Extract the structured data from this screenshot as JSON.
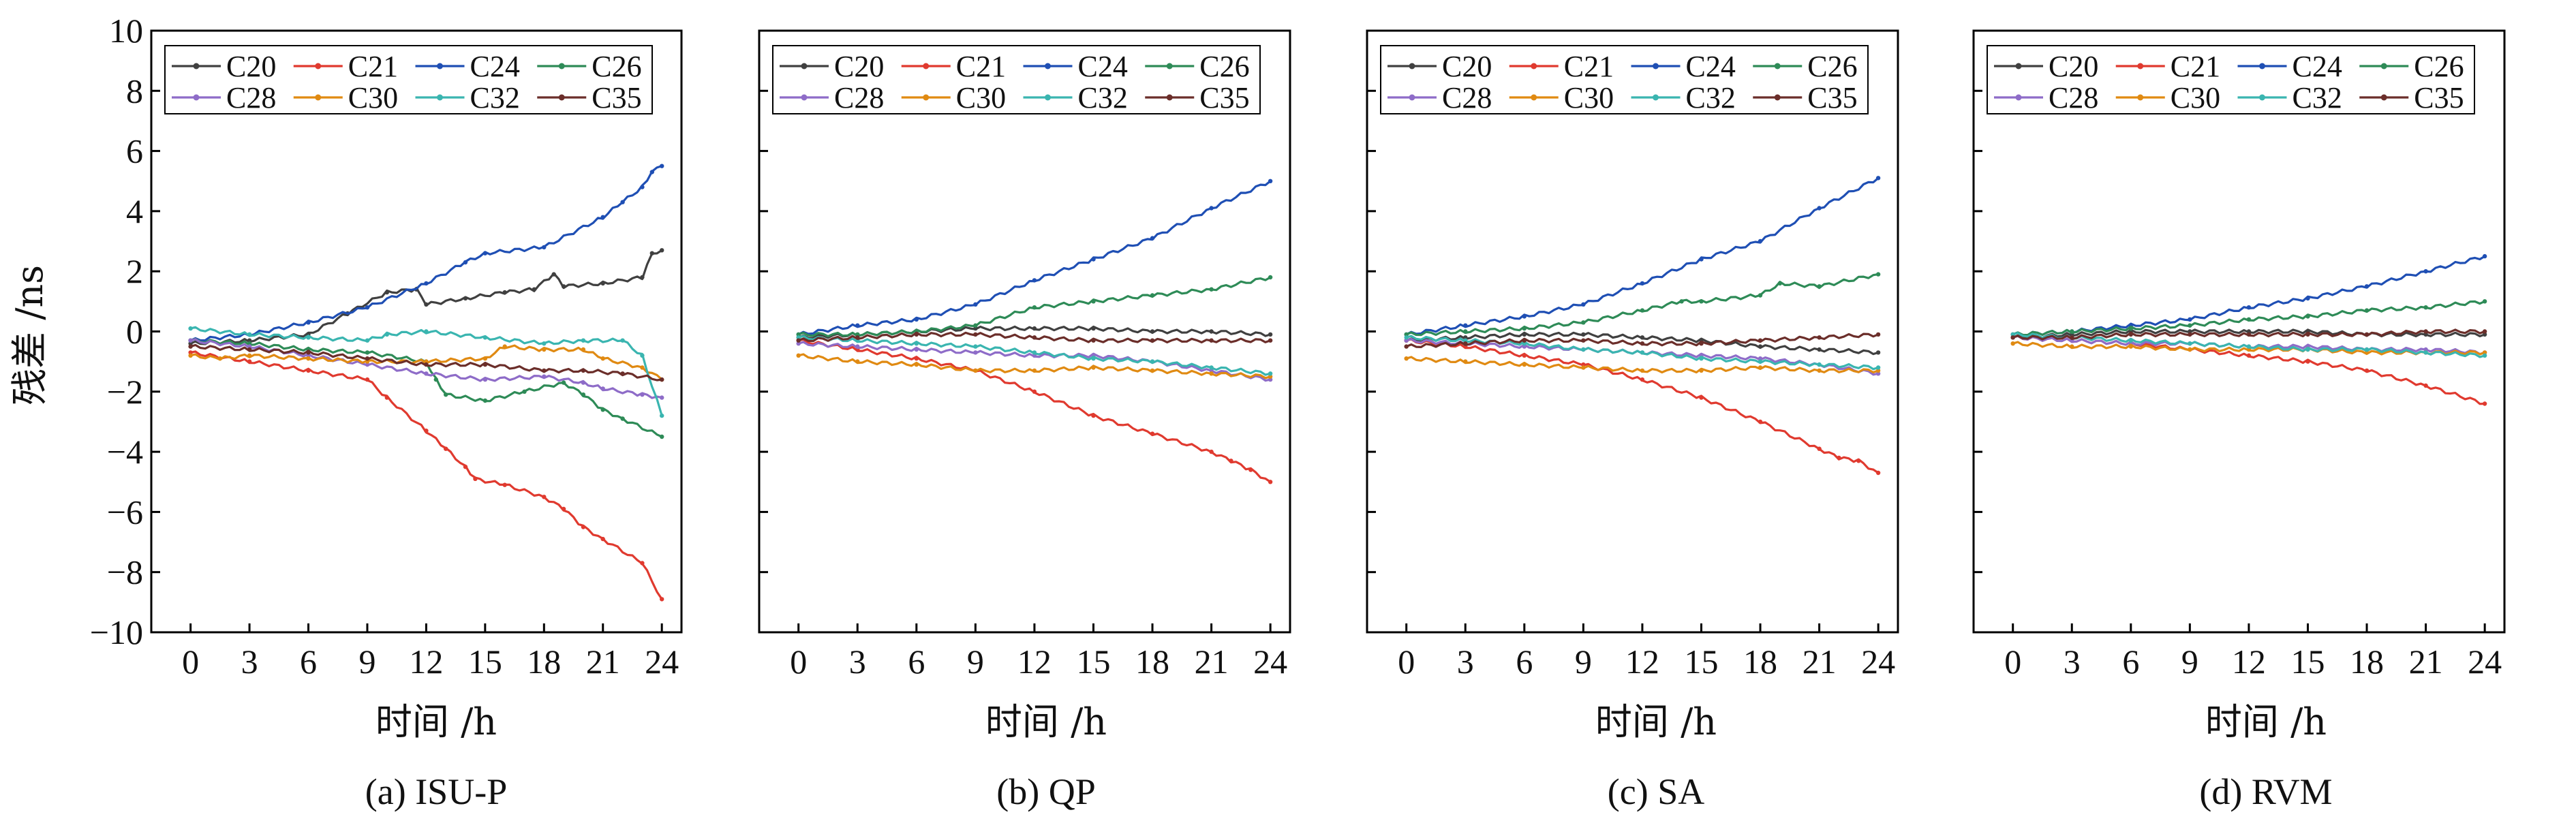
{
  "colors": {
    "C20": "#404040",
    "C21": "#e03a2f",
    "C24": "#1f4fb4",
    "C26": "#2e8b57",
    "C28": "#8e6cc8",
    "C30": "#e08a12",
    "C32": "#3ab5b0",
    "C35": "#6b2e2a"
  },
  "chart_data": [
    {
      "type": "line",
      "caption": "(a) ISU-P",
      "xlabel": "时间 /h",
      "ylabel": "残差 /ns",
      "xlim": [
        -2,
        25
      ],
      "ylim": [
        -10,
        10
      ],
      "xticks": [
        0,
        3,
        6,
        9,
        12,
        15,
        18,
        21,
        24
      ],
      "yticks": [
        -10,
        -8,
        -6,
        -4,
        -2,
        0,
        2,
        4,
        6,
        8,
        10
      ],
      "legend": [
        "C20",
        "C21",
        "C24",
        "C26",
        "C28",
        "C30",
        "C32",
        "C35"
      ],
      "series": [
        {
          "name": "C20",
          "x": [
            0,
            3,
            6,
            8,
            10,
            11.5,
            12,
            14,
            16,
            17.5,
            18.5,
            19,
            21,
            23,
            23.5,
            24
          ],
          "y": [
            -0.4,
            -0.3,
            -0.1,
            0.6,
            1.3,
            1.4,
            0.9,
            1.1,
            1.3,
            1.4,
            1.9,
            1.5,
            1.6,
            1.8,
            2.6,
            2.7
          ]
        },
        {
          "name": "C21",
          "x": [
            0,
            3,
            6,
            9,
            10,
            12,
            13,
            14,
            14.5,
            16,
            18,
            19,
            20,
            21,
            23,
            24
          ],
          "y": [
            -0.7,
            -1.0,
            -1.3,
            -1.6,
            -2.2,
            -3.3,
            -3.9,
            -4.5,
            -4.9,
            -5.1,
            -5.5,
            -5.9,
            -6.5,
            -6.9,
            -7.7,
            -8.9
          ]
        },
        {
          "name": "C24",
          "x": [
            0,
            3,
            6,
            9,
            12,
            14,
            15,
            18,
            21,
            22,
            23,
            23.5,
            24
          ],
          "y": [
            -0.3,
            -0.1,
            0.3,
            0.8,
            1.6,
            2.3,
            2.6,
            2.8,
            3.8,
            4.3,
            4.8,
            5.3,
            5.5
          ]
        },
        {
          "name": "C26",
          "x": [
            0,
            3,
            6,
            9,
            12,
            12.5,
            13,
            15,
            17,
            19,
            20,
            21,
            22,
            24
          ],
          "y": [
            -0.3,
            -0.4,
            -0.6,
            -0.7,
            -1.0,
            -1.6,
            -2.1,
            -2.3,
            -2.0,
            -1.7,
            -2.1,
            -2.6,
            -2.9,
            -3.5
          ]
        },
        {
          "name": "C28",
          "x": [
            0,
            3,
            6,
            9,
            12,
            15,
            18,
            20,
            21,
            23,
            24
          ],
          "y": [
            -0.3,
            -0.5,
            -0.8,
            -1.1,
            -1.4,
            -1.6,
            -1.5,
            -1.7,
            -1.9,
            -2.1,
            -2.2
          ]
        },
        {
          "name": "C30",
          "x": [
            0,
            1.5,
            3,
            6,
            9,
            12,
            15,
            16,
            18,
            20,
            21,
            23,
            24
          ],
          "y": [
            -0.8,
            -0.9,
            -0.8,
            -0.9,
            -1.0,
            -1.0,
            -0.9,
            -0.5,
            -0.6,
            -0.6,
            -0.9,
            -1.2,
            -1.6
          ]
        },
        {
          "name": "C32",
          "x": [
            0,
            3,
            6,
            9,
            10,
            12,
            15,
            18,
            20,
            22,
            23,
            24
          ],
          "y": [
            0.1,
            -0.1,
            -0.2,
            -0.3,
            -0.1,
            0.0,
            -0.2,
            -0.4,
            -0.3,
            -0.3,
            -0.8,
            -2.8
          ]
        },
        {
          "name": "C35",
          "x": [
            0,
            3,
            6,
            9,
            12,
            15,
            18,
            20,
            22,
            24
          ],
          "y": [
            -0.5,
            -0.6,
            -0.7,
            -0.9,
            -1.1,
            -1.1,
            -1.3,
            -1.3,
            -1.4,
            -1.6
          ]
        }
      ]
    },
    {
      "type": "line",
      "caption": "(b) QP",
      "xlabel": "时间 /h",
      "ylabel": "",
      "xlim": [
        -2,
        25
      ],
      "ylim": [
        -10,
        10
      ],
      "xticks": [
        0,
        3,
        6,
        9,
        12,
        15,
        18,
        21,
        24
      ],
      "yticks": [
        -10,
        -8,
        -6,
        -4,
        -2,
        0,
        2,
        4,
        6,
        8,
        10
      ],
      "legend": [
        "C20",
        "C21",
        "C24",
        "C26",
        "C28",
        "C30",
        "C32",
        "C35"
      ],
      "series": [
        {
          "name": "C20",
          "x": [
            0,
            3,
            6,
            9,
            12,
            15,
            18,
            21,
            24
          ],
          "y": [
            -0.2,
            -0.1,
            0.0,
            0.1,
            0.1,
            0.1,
            0.0,
            0.0,
            -0.1
          ]
        },
        {
          "name": "C21",
          "x": [
            0,
            3,
            6,
            9,
            12,
            15,
            18,
            21,
            22,
            23,
            24
          ],
          "y": [
            -0.3,
            -0.6,
            -0.9,
            -1.3,
            -2.0,
            -2.8,
            -3.4,
            -4.0,
            -4.3,
            -4.6,
            -5.0
          ]
        },
        {
          "name": "C24",
          "x": [
            0,
            3,
            6,
            9,
            12,
            15,
            18,
            21,
            24
          ],
          "y": [
            -0.1,
            0.2,
            0.4,
            0.9,
            1.7,
            2.4,
            3.1,
            4.1,
            5.0
          ]
        },
        {
          "name": "C26",
          "x": [
            0,
            3,
            6,
            9,
            12,
            15,
            18,
            21,
            24
          ],
          "y": [
            -0.1,
            -0.1,
            0.0,
            0.2,
            0.8,
            1.0,
            1.2,
            1.4,
            1.8
          ]
        },
        {
          "name": "C28",
          "x": [
            0,
            3,
            6,
            9,
            12,
            15,
            18,
            21,
            24
          ],
          "y": [
            -0.4,
            -0.5,
            -0.6,
            -0.7,
            -0.8,
            -0.8,
            -1.0,
            -1.3,
            -1.6
          ]
        },
        {
          "name": "C30",
          "x": [
            0,
            3,
            6,
            9,
            12,
            15,
            18,
            21,
            24
          ],
          "y": [
            -0.8,
            -1.0,
            -1.1,
            -1.3,
            -1.3,
            -1.2,
            -1.3,
            -1.4,
            -1.5
          ]
        },
        {
          "name": "C32",
          "x": [
            0,
            3,
            6,
            9,
            12,
            15,
            18,
            21,
            24
          ],
          "y": [
            -0.2,
            -0.3,
            -0.4,
            -0.5,
            -0.7,
            -0.9,
            -1.0,
            -1.2,
            -1.4
          ]
        },
        {
          "name": "C35",
          "x": [
            0,
            3,
            6,
            9,
            12,
            15,
            18,
            21,
            24
          ],
          "y": [
            -0.3,
            -0.2,
            -0.1,
            -0.1,
            -0.2,
            -0.3,
            -0.3,
            -0.3,
            -0.3
          ]
        }
      ]
    },
    {
      "type": "line",
      "caption": "(c) SA",
      "xlabel": "时间 /h",
      "ylabel": "",
      "xlim": [
        -2,
        25
      ],
      "ylim": [
        -10,
        10
      ],
      "xticks": [
        0,
        3,
        6,
        9,
        12,
        15,
        18,
        21,
        24
      ],
      "yticks": [
        -10,
        -8,
        -6,
        -4,
        -2,
        0,
        2,
        4,
        6,
        8,
        10
      ],
      "legend": [
        "C20",
        "C21",
        "C24",
        "C26",
        "C28",
        "C30",
        "C32",
        "C35"
      ],
      "series": [
        {
          "name": "C20",
          "x": [
            0,
            3,
            6,
            9,
            12,
            15,
            18,
            21,
            24
          ],
          "y": [
            -0.3,
            -0.2,
            -0.1,
            -0.1,
            -0.2,
            -0.3,
            -0.5,
            -0.6,
            -0.7
          ]
        },
        {
          "name": "C21",
          "x": [
            0,
            3,
            6,
            9,
            12,
            15,
            18,
            21,
            22,
            23,
            24
          ],
          "y": [
            -0.3,
            -0.5,
            -0.8,
            -1.1,
            -1.6,
            -2.2,
            -3.0,
            -3.9,
            -4.2,
            -4.3,
            -4.7
          ]
        },
        {
          "name": "C24",
          "x": [
            0,
            3,
            6,
            9,
            12,
            15,
            18,
            21,
            24
          ],
          "y": [
            -0.1,
            0.2,
            0.5,
            0.9,
            1.6,
            2.4,
            3.0,
            4.1,
            5.1
          ]
        },
        {
          "name": "C26",
          "x": [
            0,
            3,
            6,
            9,
            12,
            14,
            15,
            18,
            19,
            21,
            24
          ],
          "y": [
            -0.1,
            0.0,
            0.1,
            0.3,
            0.7,
            1.0,
            1.0,
            1.2,
            1.6,
            1.5,
            1.9
          ]
        },
        {
          "name": "C28",
          "x": [
            0,
            3,
            6,
            9,
            12,
            15,
            18,
            21,
            24
          ],
          "y": [
            -0.3,
            -0.4,
            -0.5,
            -0.6,
            -0.7,
            -0.8,
            -0.9,
            -1.1,
            -1.4
          ]
        },
        {
          "name": "C30",
          "x": [
            0,
            3,
            6,
            9,
            12,
            15,
            18,
            21,
            24
          ],
          "y": [
            -0.9,
            -1.0,
            -1.1,
            -1.2,
            -1.3,
            -1.3,
            -1.2,
            -1.3,
            -1.3
          ]
        },
        {
          "name": "C32",
          "x": [
            0,
            3,
            6,
            9,
            12,
            15,
            18,
            21,
            24
          ],
          "y": [
            -0.2,
            -0.3,
            -0.4,
            -0.6,
            -0.7,
            -0.9,
            -1.0,
            -1.1,
            -1.2
          ]
        },
        {
          "name": "C35",
          "x": [
            0,
            3,
            6,
            9,
            12,
            15,
            18,
            21,
            24
          ],
          "y": [
            -0.5,
            -0.4,
            -0.3,
            -0.3,
            -0.4,
            -0.4,
            -0.3,
            -0.2,
            -0.1
          ]
        }
      ]
    },
    {
      "type": "line",
      "caption": "(d) RVM",
      "xlabel": "时间 /h",
      "ylabel": "",
      "xlim": [
        -2,
        25
      ],
      "ylim": [
        -10,
        10
      ],
      "xticks": [
        0,
        3,
        6,
        9,
        12,
        15,
        18,
        21,
        24
      ],
      "yticks": [
        -10,
        -8,
        -6,
        -4,
        -2,
        0,
        2,
        4,
        6,
        8,
        10
      ],
      "legend": [
        "C20",
        "C21",
        "C24",
        "C26",
        "C28",
        "C30",
        "C32",
        "C35"
      ],
      "series": [
        {
          "name": "C20",
          "x": [
            0,
            3,
            6,
            9,
            12,
            15,
            18,
            21,
            24
          ],
          "y": [
            -0.2,
            -0.1,
            0.0,
            0.0,
            0.0,
            0.0,
            -0.1,
            -0.1,
            -0.1
          ]
        },
        {
          "name": "C21",
          "x": [
            0,
            3,
            6,
            9,
            12,
            15,
            18,
            21,
            24
          ],
          "y": [
            -0.2,
            -0.3,
            -0.4,
            -0.6,
            -0.8,
            -1.0,
            -1.3,
            -1.8,
            -2.4
          ]
        },
        {
          "name": "C24",
          "x": [
            0,
            3,
            6,
            9,
            12,
            15,
            18,
            21,
            24
          ],
          "y": [
            -0.1,
            0.0,
            0.2,
            0.4,
            0.8,
            1.1,
            1.5,
            2.0,
            2.5
          ]
        },
        {
          "name": "C26",
          "x": [
            0,
            3,
            6,
            9,
            12,
            15,
            18,
            21,
            24
          ],
          "y": [
            -0.1,
            0.0,
            0.1,
            0.2,
            0.4,
            0.5,
            0.7,
            0.8,
            1.0
          ]
        },
        {
          "name": "C28",
          "x": [
            0,
            3,
            6,
            9,
            12,
            15,
            18,
            21,
            24
          ],
          "y": [
            -0.2,
            -0.3,
            -0.4,
            -0.4,
            -0.5,
            -0.5,
            -0.6,
            -0.6,
            -0.7
          ]
        },
        {
          "name": "C30",
          "x": [
            0,
            3,
            6,
            9,
            12,
            15,
            18,
            21,
            24
          ],
          "y": [
            -0.4,
            -0.5,
            -0.5,
            -0.6,
            -0.6,
            -0.6,
            -0.7,
            -0.7,
            -0.7
          ]
        },
        {
          "name": "C32",
          "x": [
            0,
            3,
            6,
            9,
            12,
            15,
            18,
            21,
            24
          ],
          "y": [
            -0.1,
            -0.2,
            -0.3,
            -0.4,
            -0.5,
            -0.6,
            -0.6,
            -0.7,
            -0.8
          ]
        },
        {
          "name": "C35",
          "x": [
            0,
            3,
            6,
            9,
            12,
            15,
            18,
            21,
            24
          ],
          "y": [
            -0.2,
            -0.2,
            -0.1,
            -0.1,
            -0.1,
            -0.1,
            -0.1,
            0.0,
            0.0
          ]
        }
      ]
    }
  ]
}
